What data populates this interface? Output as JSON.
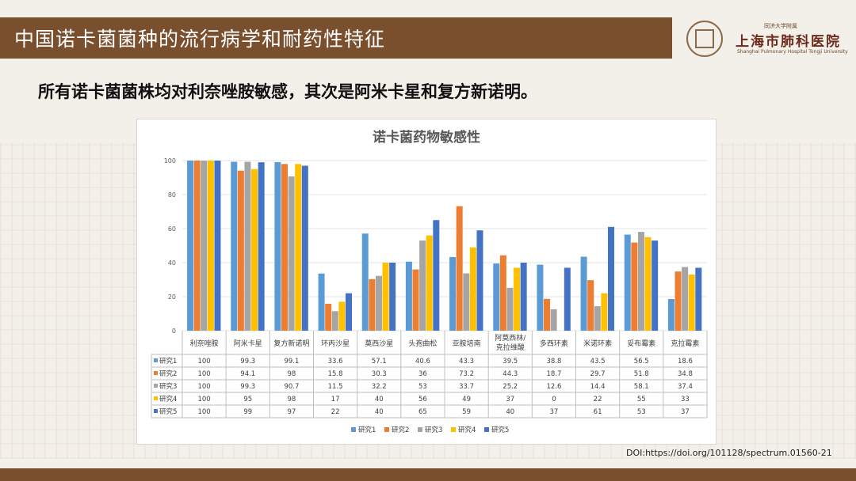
{
  "header": {
    "title": "中国诺卡菌菌种的流行病学和耐药性特征"
  },
  "logo": {
    "top_text": "同济大学附属",
    "name": "上海市肺科医院",
    "en": "Shanghai Pulmonary Hospital Tongji University"
  },
  "subtitle": "所有诺卡菌菌株均对利奈唑胺敏感，其次是阿米卡星和复方新诺明。",
  "doi": "DOI:https://doi.org/101128/spectrum.01560-21",
  "colors": {
    "title_bar": "#7a4f2e",
    "series": [
      "#5b9bd5",
      "#ed7d31",
      "#a5a5a5",
      "#ffc000",
      "#4472c4"
    ]
  },
  "chart_data": {
    "type": "bar",
    "title": "诺卡菌药物敏感性",
    "categories": [
      "利奈唑胺",
      "阿米卡星",
      "复方新诺明",
      "环丙沙星",
      "莫西沙星",
      "头孢曲松",
      "亚胺培南",
      "阿莫西林/克拉维酸",
      "多西环素",
      "米诺环素",
      "妥布霉素",
      "克拉霉素"
    ],
    "series": [
      {
        "name": "研究1",
        "values": [
          "100",
          "99.3",
          "99.1",
          "33.6",
          "57.1",
          "40.6",
          "43.3",
          "39.5",
          "38.8",
          "43.5",
          "56.5",
          "18.6"
        ]
      },
      {
        "name": "研究2",
        "values": [
          "100",
          "94.1",
          "98",
          "15.8",
          "30.3",
          "36",
          "73.2",
          "44.3",
          "18.7",
          "29.7",
          "51.8",
          "34.8"
        ]
      },
      {
        "name": "研究3",
        "values": [
          "100",
          "99.3",
          "90.7",
          "11.5",
          "32.2",
          "53",
          "33.7",
          "25.2",
          "12.6",
          "14.4",
          "58.1",
          "37.4"
        ]
      },
      {
        "name": "研究4",
        "values": [
          "100",
          "95",
          "98",
          "17",
          "40",
          "56",
          "49",
          "37",
          "0",
          "22",
          "55",
          "33"
        ]
      },
      {
        "name": "研究5",
        "values": [
          "100",
          "99",
          "97",
          "22",
          "40",
          "65",
          "59",
          "40",
          "37",
          "61",
          "53",
          "37"
        ]
      }
    ],
    "yticks": [
      "0",
      "20",
      "40",
      "60",
      "80",
      "100"
    ],
    "ylim": [
      0,
      100
    ],
    "grid": true,
    "legend": "bottom",
    "data_table": true
  }
}
